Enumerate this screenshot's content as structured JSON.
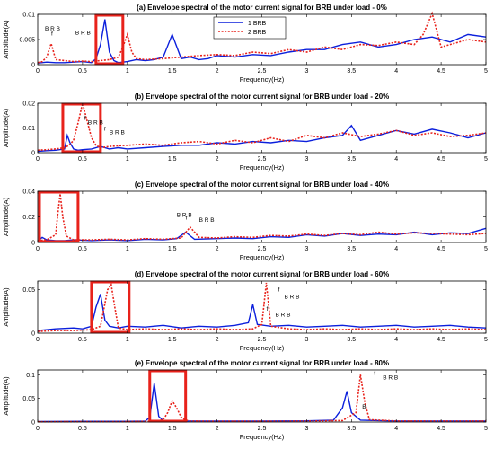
{
  "chart_data": [
    {
      "type": "line",
      "title": "(a) Envelope spectral of the motor current signal for BRB under load -  0%",
      "xlabel": "Frequency(Hz)",
      "ylabel": "Amplitude(A)",
      "xlim": [
        0,
        5
      ],
      "ylim": [
        0,
        0.01
      ],
      "xticks": [
        "0",
        "0.5",
        "1",
        "1.5",
        "2",
        "2.5",
        "3",
        "3.5",
        "4",
        "4.5",
        "5"
      ],
      "yticks": [
        "0",
        "0.005",
        "0.01"
      ],
      "legend": {
        "position": "top-center",
        "entries": [
          "1 BRB",
          "2 BRB"
        ]
      },
      "highlight_box_x": [
        0.65,
        0.95
      ],
      "annotations": [
        {
          "text": "f",
          "x": 0.15,
          "y": 0.0058
        },
        {
          "text": "B R B",
          "x": 0.08,
          "y": 0.0068
        },
        {
          "text": "B R B",
          "x": 0.42,
          "y": 0.006
        }
      ],
      "series": [
        {
          "name": "1 BRB",
          "color": "#0b1fdc",
          "style": "solid",
          "x": [
            0,
            0.1,
            0.2,
            0.3,
            0.4,
            0.5,
            0.6,
            0.65,
            0.7,
            0.75,
            0.8,
            0.85,
            0.9,
            1.0,
            1.1,
            1.2,
            1.3,
            1.4,
            1.5,
            1.6,
            1.7,
            1.8,
            1.9,
            2.0,
            2.2,
            2.4,
            2.6,
            2.8,
            3.0,
            3.2,
            3.4,
            3.6,
            3.8,
            4.0,
            4.2,
            4.4,
            4.6,
            4.8,
            5.0
          ],
          "y": [
            0.0003,
            0.0005,
            0.0004,
            0.0004,
            0.0005,
            0.0006,
            0.0004,
            0.0012,
            0.004,
            0.009,
            0.0025,
            0.0008,
            0.0004,
            0.0006,
            0.001,
            0.0008,
            0.001,
            0.0015,
            0.006,
            0.0012,
            0.0015,
            0.001,
            0.0012,
            0.0018,
            0.0015,
            0.002,
            0.0018,
            0.0025,
            0.003,
            0.003,
            0.004,
            0.0045,
            0.0035,
            0.004,
            0.005,
            0.0055,
            0.0045,
            0.006,
            0.0055
          ]
        },
        {
          "name": "2 BRB",
          "color": "#e8221b",
          "style": "dotted",
          "x": [
            0,
            0.05,
            0.1,
            0.15,
            0.2,
            0.3,
            0.4,
            0.5,
            0.6,
            0.7,
            0.8,
            0.9,
            0.95,
            1.0,
            1.05,
            1.1,
            1.2,
            1.4,
            1.6,
            1.8,
            2.0,
            2.2,
            2.4,
            2.6,
            2.8,
            3.0,
            3.2,
            3.4,
            3.6,
            3.8,
            4.0,
            4.2,
            4.3,
            4.4,
            4.5,
            4.6,
            4.8,
            5.0
          ],
          "y": [
            0.0004,
            0.0006,
            0.0015,
            0.0042,
            0.001,
            0.0008,
            0.0006,
            0.0007,
            0.0006,
            0.0008,
            0.001,
            0.0015,
            0.0035,
            0.006,
            0.0025,
            0.0012,
            0.001,
            0.0012,
            0.0015,
            0.0018,
            0.002,
            0.0018,
            0.0025,
            0.0022,
            0.003,
            0.0025,
            0.0035,
            0.003,
            0.004,
            0.0038,
            0.0045,
            0.004,
            0.006,
            0.0102,
            0.0035,
            0.004,
            0.005,
            0.0045
          ]
        }
      ]
    },
    {
      "type": "line",
      "title": "(b) Envelope spectral of the motor current signal for BRB under load -  20%",
      "xlabel": "Frequency(Hz)",
      "ylabel": "Amplitude(A)",
      "xlim": [
        0,
        5
      ],
      "ylim": [
        0,
        0.02
      ],
      "xticks": [
        "0",
        "0.5",
        "1",
        "1.5",
        "2",
        "2.5",
        "3",
        "3.5",
        "4",
        "4.5",
        "5"
      ],
      "yticks": [
        "0",
        "0.01",
        "0.02"
      ],
      "highlight_box_x": [
        0.28,
        0.7
      ],
      "annotations": [
        {
          "text": "f",
          "x": 0.52,
          "y": 0.0132
        },
        {
          "text": "B R B",
          "x": 0.56,
          "y": 0.0114
        },
        {
          "text": "f",
          "x": 0.74,
          "y": 0.009
        },
        {
          "text": "B R B",
          "x": 0.8,
          "y": 0.0074
        }
      ],
      "series": [
        {
          "name": "1 BRB",
          "color": "#0b1fdc",
          "style": "solid",
          "x": [
            0,
            0.1,
            0.2,
            0.3,
            0.33,
            0.36,
            0.4,
            0.45,
            0.5,
            0.6,
            0.7,
            0.8,
            0.9,
            1.0,
            1.2,
            1.4,
            1.6,
            1.8,
            2.0,
            2.2,
            2.4,
            2.6,
            2.8,
            3.0,
            3.2,
            3.4,
            3.5,
            3.6,
            3.8,
            4.0,
            4.2,
            4.4,
            4.6,
            4.8,
            5.0
          ],
          "y": [
            0.0005,
            0.0008,
            0.001,
            0.0015,
            0.007,
            0.004,
            0.0015,
            0.001,
            0.0012,
            0.0015,
            0.0025,
            0.0015,
            0.002,
            0.0015,
            0.002,
            0.0025,
            0.003,
            0.003,
            0.004,
            0.0035,
            0.0045,
            0.004,
            0.005,
            0.0045,
            0.006,
            0.007,
            0.011,
            0.005,
            0.007,
            0.009,
            0.0075,
            0.0095,
            0.008,
            0.006,
            0.008
          ]
        },
        {
          "name": "2 BRB",
          "color": "#e8221b",
          "style": "dotted",
          "x": [
            0,
            0.1,
            0.2,
            0.3,
            0.35,
            0.4,
            0.45,
            0.5,
            0.55,
            0.6,
            0.65,
            0.7,
            0.8,
            1.0,
            1.2,
            1.4,
            1.6,
            1.8,
            2.0,
            2.2,
            2.4,
            2.6,
            2.8,
            3.0,
            3.2,
            3.4,
            3.6,
            3.8,
            4.0,
            4.2,
            4.4,
            4.6,
            4.8,
            5.0
          ],
          "y": [
            0.001,
            0.0012,
            0.0015,
            0.002,
            0.003,
            0.005,
            0.012,
            0.02,
            0.013,
            0.006,
            0.003,
            0.002,
            0.0025,
            0.003,
            0.0035,
            0.003,
            0.004,
            0.0045,
            0.0035,
            0.005,
            0.004,
            0.006,
            0.0045,
            0.007,
            0.006,
            0.008,
            0.0065,
            0.0075,
            0.009,
            0.007,
            0.008,
            0.0065,
            0.007,
            0.008
          ]
        }
      ]
    },
    {
      "type": "line",
      "title": "(c) Envelope spectral of the motor current signal for BRB under load -  40%",
      "xlabel": "Frequency(Hz)",
      "ylabel": "Amplitude(A)",
      "xlim": [
        0,
        5
      ],
      "ylim": [
        0,
        0.04
      ],
      "xticks": [
        "0",
        "0.5",
        "1",
        "1.5",
        "2",
        "2.5",
        "3",
        "3.5",
        "4",
        "4.5",
        "5"
      ],
      "yticks": [
        "0",
        "0.02",
        "0.04"
      ],
      "highlight_box_x": [
        0.02,
        0.45
      ],
      "annotations": [
        {
          "text": "B R B",
          "x": 1.55,
          "y": 0.02
        },
        {
          "text": "f",
          "x": 1.65,
          "y": 0.018
        },
        {
          "text": "B R B",
          "x": 1.8,
          "y": 0.016
        }
      ],
      "series": [
        {
          "name": "1 BRB",
          "color": "#0b1fdc",
          "style": "solid",
          "x": [
            0,
            0.05,
            0.1,
            0.2,
            0.3,
            0.4,
            0.6,
            0.8,
            1.0,
            1.2,
            1.4,
            1.55,
            1.65,
            1.75,
            2.0,
            2.2,
            2.4,
            2.6,
            2.8,
            3.0,
            3.2,
            3.4,
            3.6,
            3.8,
            4.0,
            4.2,
            4.4,
            4.6,
            4.8,
            5.0
          ],
          "y": [
            0.001,
            0.004,
            0.002,
            0.0015,
            0.0015,
            0.002,
            0.0015,
            0.002,
            0.0015,
            0.0025,
            0.002,
            0.003,
            0.008,
            0.0025,
            0.003,
            0.0035,
            0.003,
            0.0045,
            0.004,
            0.006,
            0.005,
            0.007,
            0.0055,
            0.0065,
            0.006,
            0.008,
            0.006,
            0.0075,
            0.007,
            0.011
          ]
        },
        {
          "name": "2 BRB",
          "color": "#e8221b",
          "style": "dotted",
          "x": [
            0,
            0.1,
            0.2,
            0.22,
            0.25,
            0.28,
            0.32,
            0.4,
            0.6,
            0.8,
            1.0,
            1.2,
            1.4,
            1.6,
            1.7,
            1.8,
            2.0,
            2.2,
            2.4,
            2.6,
            2.8,
            3.0,
            3.2,
            3.4,
            3.6,
            3.8,
            4.0,
            4.2,
            4.4,
            4.6,
            4.8,
            5.0
          ],
          "y": [
            0.0015,
            0.002,
            0.006,
            0.02,
            0.038,
            0.02,
            0.005,
            0.002,
            0.002,
            0.0025,
            0.002,
            0.003,
            0.0025,
            0.0035,
            0.012,
            0.004,
            0.0035,
            0.0045,
            0.004,
            0.0055,
            0.005,
            0.0065,
            0.0055,
            0.007,
            0.006,
            0.008,
            0.0065,
            0.0075,
            0.007,
            0.0065,
            0.006,
            0.007
          ]
        }
      ]
    },
    {
      "type": "line",
      "title": "(d) Envelope spectral of the motor current signal for BRB under load -  60%",
      "xlabel": "Frequency(Hz)",
      "ylabel": "Amplitude(A)",
      "xlim": [
        0,
        5
      ],
      "ylim": [
        0,
        0.06
      ],
      "xticks": [
        "0",
        "0.5",
        "1",
        "1.5",
        "2",
        "2.5",
        "3",
        "3.5",
        "4",
        "4.5",
        "5"
      ],
      "yticks": [
        "0",
        "0.05"
      ],
      "highlight_box_x": [
        0.6,
        1.02
      ],
      "annotations": [
        {
          "text": "f",
          "x": 2.68,
          "y": 0.048
        },
        {
          "text": "B R B",
          "x": 2.75,
          "y": 0.04
        },
        {
          "text": "f",
          "x": 2.55,
          "y": 0.026
        },
        {
          "text": "B R B",
          "x": 2.65,
          "y": 0.019
        }
      ],
      "series": [
        {
          "name": "1 BRB",
          "color": "#0b1fdc",
          "style": "solid",
          "x": [
            0,
            0.2,
            0.4,
            0.5,
            0.6,
            0.65,
            0.7,
            0.75,
            0.8,
            0.9,
            1.0,
            1.2,
            1.4,
            1.6,
            1.8,
            2.0,
            2.2,
            2.35,
            2.4,
            2.45,
            2.6,
            2.8,
            3.0,
            3.2,
            3.4,
            3.6,
            3.8,
            4.0,
            4.2,
            4.4,
            4.6,
            4.8,
            5.0
          ],
          "y": [
            0.003,
            0.005,
            0.006,
            0.005,
            0.008,
            0.03,
            0.045,
            0.015,
            0.008,
            0.006,
            0.008,
            0.007,
            0.009,
            0.006,
            0.008,
            0.007,
            0.009,
            0.012,
            0.033,
            0.01,
            0.008,
            0.009,
            0.007,
            0.008,
            0.009,
            0.007,
            0.008,
            0.009,
            0.007,
            0.008,
            0.009,
            0.007,
            0.006
          ]
        },
        {
          "name": "2 BRB",
          "color": "#e8221b",
          "style": "dotted",
          "x": [
            0,
            0.2,
            0.4,
            0.6,
            0.7,
            0.78,
            0.82,
            0.86,
            0.9,
            1.0,
            1.2,
            1.4,
            1.6,
            1.8,
            2.0,
            2.2,
            2.4,
            2.5,
            2.55,
            2.6,
            2.8,
            3.0,
            3.2,
            3.4,
            3.6,
            3.8,
            4.0,
            4.2,
            4.4,
            4.6,
            4.8,
            5.0
          ],
          "y": [
            0.002,
            0.003,
            0.003,
            0.004,
            0.008,
            0.05,
            0.056,
            0.03,
            0.006,
            0.004,
            0.005,
            0.004,
            0.005,
            0.004,
            0.005,
            0.004,
            0.005,
            0.01,
            0.058,
            0.008,
            0.005,
            0.004,
            0.005,
            0.004,
            0.005,
            0.004,
            0.005,
            0.004,
            0.005,
            0.004,
            0.005,
            0.004
          ]
        }
      ]
    },
    {
      "type": "line",
      "title": "(e) Envelope spectral of the motor current signal for BRB under load -  80%",
      "xlabel": "Frequency(Hz)",
      "ylabel": "Amplitude(A)",
      "xlim": [
        0,
        5
      ],
      "ylim": [
        0,
        0.11
      ],
      "xticks": [
        "0",
        "0.5",
        "1",
        "1.5",
        "2",
        "2.5",
        "3",
        "3.5",
        "4",
        "4.5",
        "5"
      ],
      "yticks": [
        "0",
        "0.05",
        "0.1"
      ],
      "highlight_box_x": [
        1.25,
        1.65
      ],
      "annotations": [
        {
          "text": "f",
          "x": 3.75,
          "y": 0.1
        },
        {
          "text": "B R B",
          "x": 3.85,
          "y": 0.09
        },
        {
          "text": "B",
          "x": 3.62,
          "y": 0.028
        }
      ],
      "series": [
        {
          "name": "1 BRB",
          "color": "#0b1fdc",
          "style": "solid",
          "x": [
            0,
            0.5,
            1.0,
            1.2,
            1.25,
            1.3,
            1.35,
            1.4,
            1.6,
            2.0,
            2.5,
            3.0,
            3.3,
            3.4,
            3.45,
            3.5,
            3.6,
            4.0,
            4.5,
            5.0
          ],
          "y": [
            0.001,
            0.0015,
            0.0015,
            0.002,
            0.01,
            0.082,
            0.012,
            0.003,
            0.002,
            0.002,
            0.002,
            0.0025,
            0.004,
            0.03,
            0.065,
            0.02,
            0.004,
            0.002,
            0.002,
            0.002
          ]
        },
        {
          "name": "2 BRB",
          "color": "#e8221b",
          "style": "dotted",
          "x": [
            0,
            0.5,
            1.0,
            1.3,
            1.4,
            1.45,
            1.5,
            1.55,
            1.6,
            1.65,
            1.7,
            2.0,
            2.5,
            3.0,
            3.4,
            3.55,
            3.6,
            3.65,
            3.7,
            4.0,
            4.5,
            5.0
          ],
          "y": [
            0.0005,
            0.001,
            0.001,
            0.0015,
            0.005,
            0.02,
            0.045,
            0.03,
            0.01,
            0.004,
            0.002,
            0.0015,
            0.0015,
            0.002,
            0.003,
            0.02,
            0.1,
            0.04,
            0.005,
            0.002,
            0.002,
            0.002
          ]
        }
      ]
    }
  ]
}
